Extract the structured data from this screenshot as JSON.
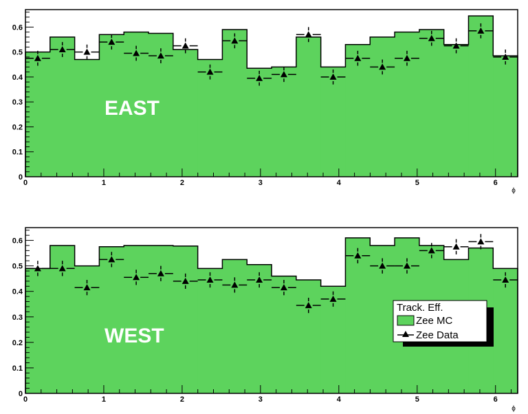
{
  "colors": {
    "mc_fill": "#5dd35d",
    "data_marker": "#000000",
    "frame": "#000000",
    "background": "#ffffff"
  },
  "legend": {
    "title": "Track. Eff.",
    "mc_label": "Zee MC",
    "data_label": "Zee Data",
    "placement": "bottom-right of lower panel"
  },
  "chart_data": [
    {
      "type": "bar",
      "label": "EAST",
      "xlabel": "ϕ",
      "xlim": [
        0,
        6.2832
      ],
      "ylim": [
        0,
        0.67
      ],
      "x_ticks": [
        0,
        1,
        2,
        3,
        4,
        5,
        6
      ],
      "y_ticks": [
        0,
        0.1,
        0.2,
        0.3,
        0.4,
        0.5,
        0.6
      ],
      "y_tick_labels": [
        "0",
        "0.1",
        "0.2",
        "0.3",
        "0.4",
        "0.5",
        "0.6"
      ],
      "bin_width": 0.3142,
      "series": [
        {
          "name": "Zee MC",
          "style": "filled-histogram",
          "values": [
            0.5,
            0.56,
            0.47,
            0.57,
            0.58,
            0.575,
            0.51,
            0.47,
            0.59,
            0.435,
            0.44,
            0.56,
            0.44,
            0.53,
            0.56,
            0.58,
            0.59,
            0.53,
            0.645,
            0.485
          ]
        },
        {
          "name": "Zee Data",
          "style": "markers-with-errors",
          "values": [
            0.475,
            0.51,
            0.5,
            0.54,
            0.495,
            0.485,
            0.525,
            0.42,
            0.545,
            0.395,
            0.41,
            0.57,
            0.4,
            0.475,
            0.44,
            0.475,
            0.555,
            0.525,
            0.585,
            0.48
          ],
          "errors": [
            0.03,
            0.03,
            0.03,
            0.03,
            0.03,
            0.03,
            0.03,
            0.03,
            0.03,
            0.03,
            0.03,
            0.03,
            0.03,
            0.03,
            0.03,
            0.03,
            0.03,
            0.03,
            0.03,
            0.03
          ]
        }
      ]
    },
    {
      "type": "bar",
      "label": "WEST",
      "xlabel": "ϕ",
      "xlim": [
        0,
        6.2832
      ],
      "ylim": [
        0,
        0.65
      ],
      "x_ticks": [
        0,
        1,
        2,
        3,
        4,
        5,
        6
      ],
      "y_ticks": [
        0,
        0.1,
        0.2,
        0.3,
        0.4,
        0.5,
        0.6
      ],
      "y_tick_labels": [
        "0",
        "0.1",
        "0.2",
        "0.3",
        "0.4",
        "0.5",
        "0.6"
      ],
      "bin_width": 0.3142,
      "series": [
        {
          "name": "Zee MC",
          "style": "filled-histogram",
          "values": [
            0.49,
            0.58,
            0.5,
            0.575,
            0.58,
            0.58,
            0.578,
            0.49,
            0.525,
            0.505,
            0.46,
            0.445,
            0.42,
            0.61,
            0.58,
            0.61,
            0.58,
            0.525,
            0.57,
            0.49
          ]
        },
        {
          "name": "Zee Data",
          "style": "markers-with-errors",
          "values": [
            0.49,
            0.49,
            0.415,
            0.525,
            0.455,
            0.47,
            0.44,
            0.445,
            0.425,
            0.445,
            0.415,
            0.345,
            0.37,
            0.54,
            0.5,
            0.5,
            0.56,
            0.575,
            0.595,
            0.445
          ],
          "errors": [
            0.03,
            0.03,
            0.03,
            0.03,
            0.03,
            0.03,
            0.03,
            0.03,
            0.03,
            0.03,
            0.03,
            0.03,
            0.03,
            0.03,
            0.03,
            0.03,
            0.03,
            0.03,
            0.03,
            0.03
          ]
        }
      ]
    }
  ]
}
